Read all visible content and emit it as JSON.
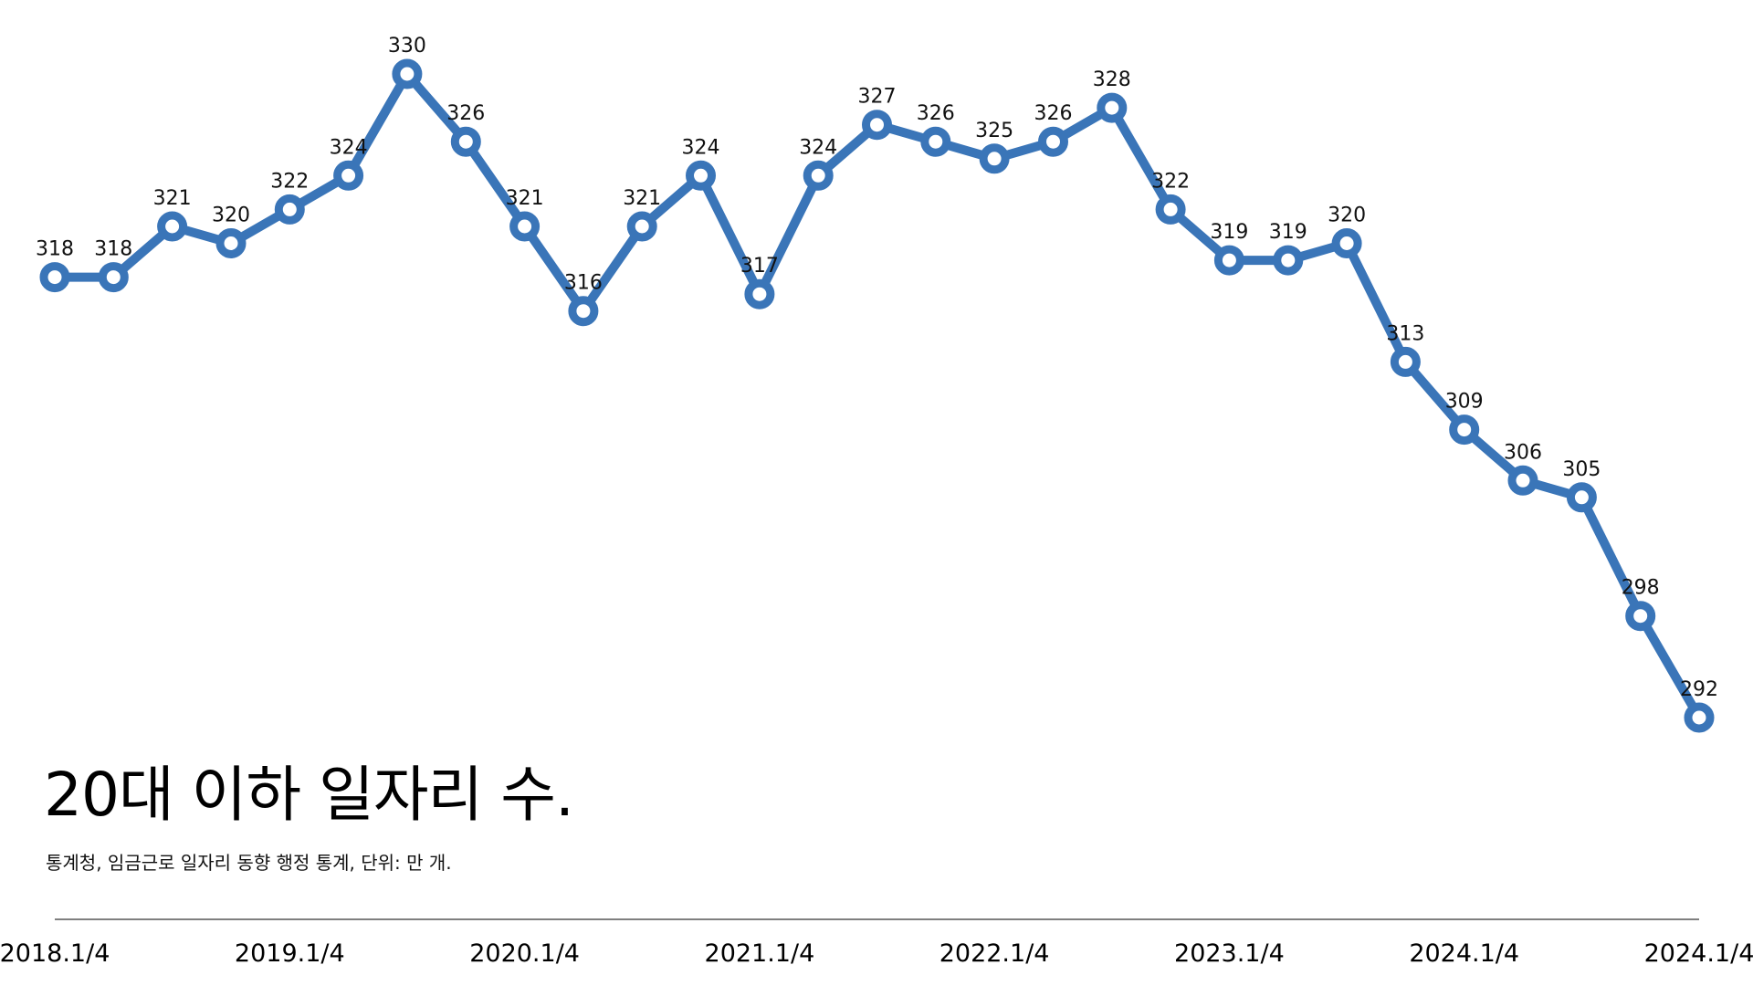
{
  "chart_data": {
    "type": "line",
    "title": "20대 이하 일자리 수.",
    "subtitle": "통계청, 임금근로 일자리 동향 행정 통계, 단위: 만 개.",
    "xlabel": "",
    "ylabel": "",
    "x_tick_labels": [
      "2018.1/4",
      "2019.1/4",
      "2020.1/4",
      "2021.1/4",
      "2022.1/4",
      "2023.1/4",
      "2024.1/4",
      "2024.1/4"
    ],
    "values": [
      318,
      318,
      321,
      320,
      322,
      324,
      330,
      326,
      321,
      316,
      321,
      324,
      317,
      324,
      327,
      326,
      325,
      326,
      328,
      322,
      319,
      319,
      320,
      313,
      309,
      306,
      305,
      298,
      292
    ],
    "labels": [
      "318",
      "318",
      "321",
      "320",
      "322",
      "324",
      "330",
      "326",
      "321",
      "316",
      "321",
      "324",
      "317",
      "324",
      "327",
      "326",
      "325",
      "326",
      "328",
      "322",
      "319",
      "319",
      "320",
      "313",
      "309",
      "306",
      "305",
      "298",
      "292"
    ],
    "ylim": [
      292,
      330
    ],
    "grid": false,
    "legend": "none",
    "line_color": "#3a75b8",
    "marker_fill": "#ffffff"
  }
}
